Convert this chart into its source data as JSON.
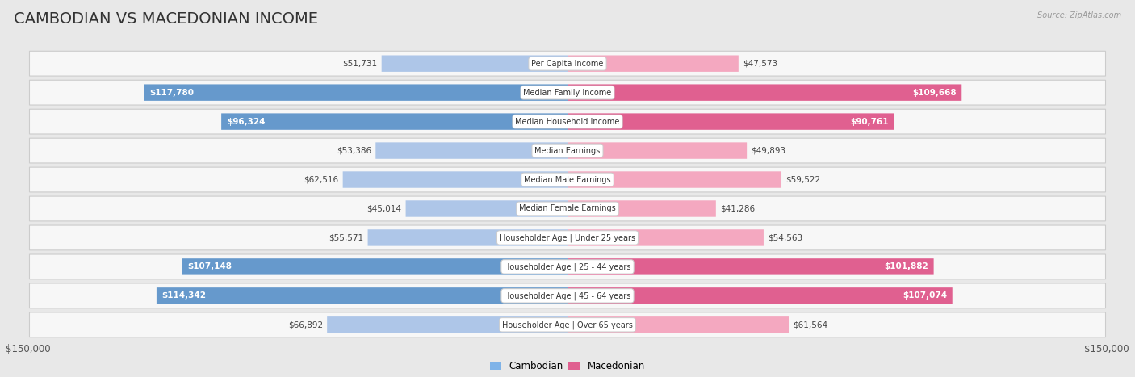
{
  "title": "CAMBODIAN VS MACEDONIAN INCOME",
  "source": "Source: ZipAtlas.com",
  "categories": [
    "Per Capita Income",
    "Median Family Income",
    "Median Household Income",
    "Median Earnings",
    "Median Male Earnings",
    "Median Female Earnings",
    "Householder Age | Under 25 years",
    "Householder Age | 25 - 44 years",
    "Householder Age | 45 - 64 years",
    "Householder Age | Over 65 years"
  ],
  "cambodian_values": [
    51731,
    117780,
    96324,
    53386,
    62516,
    45014,
    55571,
    107148,
    114342,
    66892
  ],
  "macedonian_values": [
    47573,
    109668,
    90761,
    49893,
    59522,
    41286,
    54563,
    101882,
    107074,
    61564
  ],
  "cambodian_labels": [
    "$51,731",
    "$117,780",
    "$96,324",
    "$53,386",
    "$62,516",
    "$45,014",
    "$55,571",
    "$107,148",
    "$114,342",
    "$66,892"
  ],
  "macedonian_labels": [
    "$47,573",
    "$109,668",
    "$90,761",
    "$49,893",
    "$59,522",
    "$41,286",
    "$54,563",
    "$101,882",
    "$107,074",
    "$61,564"
  ],
  "max_value": 150000,
  "cambodian_color_light": "#aec6e8",
  "cambodian_color_dark": "#6699cc",
  "macedonian_color_light": "#f4a8c0",
  "macedonian_color_dark": "#e06090",
  "background_color": "#e8e8e8",
  "bar_bg_color": "#f7f7f7",
  "large_threshold": 80000,
  "legend_cambodian_color": "#7fb3e8",
  "legend_macedonian_color": "#e06090",
  "title_fontsize": 14,
  "label_fontsize": 7.5,
  "category_fontsize": 7,
  "tick_fontsize": 8.5
}
